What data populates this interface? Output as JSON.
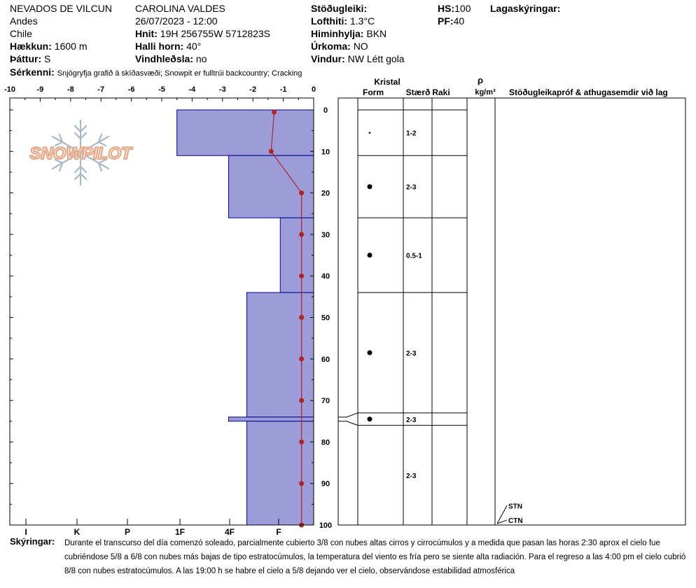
{
  "header": {
    "location": "NEVADOS DE VILCUN",
    "range": "Andes",
    "country": "Chile",
    "elevation_label": "Hækkun:",
    "elevation_value": "1600 m",
    "aspect_label": "Þáttur:",
    "aspect_value": "S",
    "observer": "CAROLINA  VALDES",
    "datetime": "26/07/2023 - 12:00",
    "coords_label": "Hnit:",
    "coords_value": "19H 256755W 5712823S",
    "slope_label": "Halli horn:",
    "slope_value": "40°",
    "wind_loading_label": "Vindhleðsla:",
    "wind_loading_value": "no",
    "stability_label": "Stöðugleiki:",
    "air_temp_label": "Lofthiti:",
    "air_temp_value": "1.3°C",
    "sky_label": "Himinhylja:",
    "sky_value": "BKN",
    "precip_label": "Úrkoma:",
    "precip_value": "NO",
    "wind_label": "Vindur:",
    "wind_value": "NW Létt gola",
    "hs_label": "HS:",
    "hs_value": "100",
    "pf_label": "PF:",
    "pf_value": "40",
    "layer_notes_label": "Lagaskýringar:",
    "features_label": "Sérkenni:",
    "features_value": "Snjógryfja grafið á skíðasvæði;  Snowpit er fulltrúi backcountry;  Cracking"
  },
  "logo_text": "SNOWPILOT",
  "colors": {
    "hardness_fill": "#9c9cd8",
    "hardness_stroke": "#00008b",
    "temp_line": "#b22222",
    "logo_orange": "#e8a888",
    "logo_blue": "#a8b8c8"
  },
  "table_headers": {
    "crystal": "Kristal",
    "form": "Form",
    "size": "Stærð",
    "moisture": "Raki",
    "density_symbol": "ρ",
    "density_unit": "kg/m³",
    "stability_tests": "Stöðugleikapróf & athugasemdir við lag"
  },
  "chart_data": {
    "type": "snow_profile",
    "depth_axis": {
      "ticks": [
        0,
        10,
        20,
        30,
        40,
        50,
        60,
        70,
        80,
        90,
        100
      ],
      "range": [
        0,
        100
      ]
    },
    "temperature_axis": {
      "ticks": [
        "-10",
        "-9",
        "-8",
        "-7",
        "-6",
        "-5",
        "-4",
        "-3",
        "-2",
        "-1",
        "0"
      ],
      "range": [
        -10,
        0
      ]
    },
    "hardness_axis": {
      "labels": [
        "I",
        "K",
        "P",
        "1F",
        "4F",
        "F"
      ]
    },
    "hardness_layers": [
      {
        "top": 0,
        "bottom": 11,
        "temp_equiv": -4.5
      },
      {
        "top": 11,
        "bottom": 26,
        "temp_equiv": -2.8
      },
      {
        "top": 26,
        "bottom": 44,
        "temp_equiv": -1.1
      },
      {
        "top": 44,
        "bottom": 74,
        "temp_equiv": -2.2
      },
      {
        "top": 74,
        "bottom": 75,
        "temp_equiv": -2.8
      },
      {
        "top": 75,
        "bottom": 100,
        "temp_equiv": -2.2
      }
    ],
    "temperature_profile": [
      {
        "depth": 0.5,
        "temp": -1.3
      },
      {
        "depth": 10,
        "temp": -1.4
      },
      {
        "depth": 20,
        "temp": -0.4
      },
      {
        "depth": 30,
        "temp": -0.4
      },
      {
        "depth": 40,
        "temp": -0.4
      },
      {
        "depth": 50,
        "temp": -0.4
      },
      {
        "depth": 60,
        "temp": -0.4
      },
      {
        "depth": 70,
        "temp": -0.4
      },
      {
        "depth": 80,
        "temp": -0.4
      },
      {
        "depth": 90,
        "temp": -0.4
      },
      {
        "depth": 100,
        "temp": -0.4
      }
    ],
    "crystal_rows": [
      {
        "top": 0,
        "bottom": 11,
        "marker_depth": 5.5,
        "form": "small-dot",
        "size": "1-2"
      },
      {
        "top": 11,
        "bottom": 26,
        "marker_depth": 18.5,
        "form": "dot",
        "size": "2-3"
      },
      {
        "top": 26,
        "bottom": 44,
        "marker_depth": 35,
        "form": "dot",
        "size": "0.5-1"
      },
      {
        "top": 44,
        "bottom": 73,
        "marker_depth": 58.5,
        "form": "dot",
        "size": "2-3"
      },
      {
        "top": 73,
        "bottom": 76,
        "marker_depth": 74.5,
        "form": "dot",
        "size": "2-3"
      },
      {
        "top": 76,
        "bottom": 100,
        "marker_depth": 88,
        "form": "",
        "size": "2-3"
      }
    ],
    "stability_tests": [
      {
        "label": "STN",
        "depth": 96
      },
      {
        "label": "CTN",
        "depth": 99.5
      }
    ]
  },
  "notes": {
    "label": "Skýringar:",
    "text": "Durante el transcurso del día comenzó soleado, parcialmente cubierto 3/8 con nubes altas cirros y cirrocúmulos y a medida que pasan las horas 2:30 aprox el cielo fue cubriéndose 5/8 a 6/8 con nubes más bajas de tipo estratocúmulos, la temperatura del viento es fría pero se siente alta radiación. Para el regreso a las 4:00 pm el cielo cubrió 8/8 con nubes estratocúmulos. A las 19:00 h se habre el cielo a 5/8 dejando ver el cielo, observándose estabilidad atmosférica"
  }
}
